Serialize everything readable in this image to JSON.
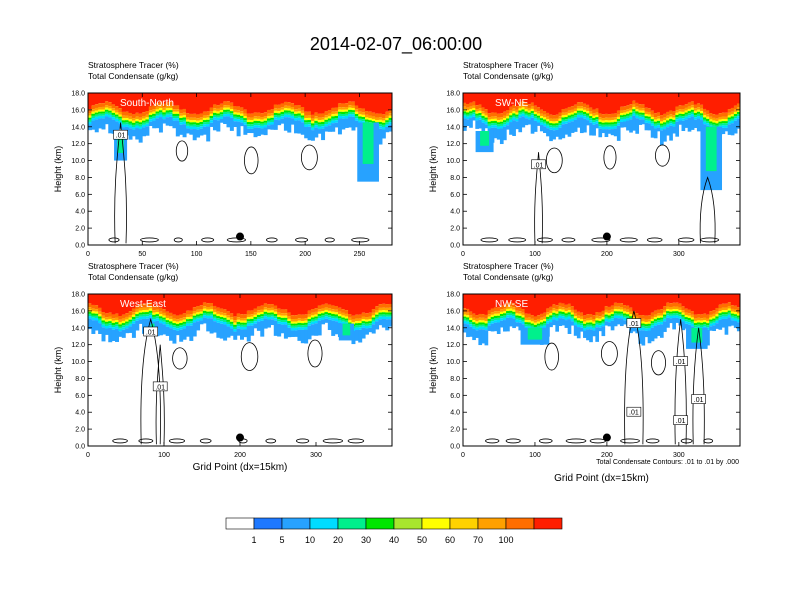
{
  "title": "2014-02-07_06:00:00",
  "colors": {
    "levels": [
      "#ffffff",
      "#1e78ff",
      "#27a2ff",
      "#00dcff",
      "#00f08c",
      "#00e600",
      "#a8e62e",
      "#ffff00",
      "#ffd200",
      "#ffa000",
      "#ff6e00",
      "#ff1e00"
    ],
    "contour": "#000000",
    "panel_label": "#ffffff"
  },
  "colorbar": {
    "labels": [
      "1",
      "5",
      "10",
      "20",
      "30",
      "40",
      "50",
      "60",
      "70",
      "100"
    ]
  },
  "footer": {
    "contour_note": "Total Condensate Contours: .01 to .01 by .000"
  },
  "chart_data": [
    {
      "type": "heatmap",
      "panel_label": "South-North",
      "left_title_1": "Stratosphere Tracer   (%)",
      "left_title_2": "Total Condensate   (g/kg)",
      "ylabel": "Height (km)",
      "xlabel": "",
      "xlim": [
        0,
        280
      ],
      "ylim": [
        0,
        18
      ],
      "xticks": [
        0,
        50,
        100,
        150,
        200,
        250
      ],
      "yticks": [
        "0.0",
        "2.0",
        "4.0",
        "6.0",
        "8.0",
        "10.0",
        "12.0",
        "14.0",
        "16.0",
        "18.0"
      ],
      "contour_labels": [
        ".01"
      ],
      "marker_x": 140
    },
    {
      "type": "heatmap",
      "panel_label": "SW-NE",
      "left_title_1": "Stratosphere Tracer   (%)",
      "left_title_2": "Total Condensate   (g/kg)",
      "ylabel": "Height (km)",
      "xlabel": "",
      "xlim": [
        0,
        385
      ],
      "ylim": [
        0,
        18
      ],
      "xticks": [
        0,
        100,
        200,
        300
      ],
      "yticks": [
        "0.0",
        "2.0",
        "4.0",
        "6.0",
        "8.0",
        "10.0",
        "12.0",
        "14.0",
        "16.0",
        "18.0"
      ],
      "contour_labels": [
        ".01"
      ],
      "marker_x": 200
    },
    {
      "type": "heatmap",
      "panel_label": "West-East",
      "left_title_1": "Stratosphere Tracer   (%)",
      "left_title_2": "Total Condensate   (g/kg)",
      "ylabel": "Height (km)",
      "xlabel": "Grid Point (dx=15km)",
      "xlim": [
        0,
        400
      ],
      "ylim": [
        0,
        18
      ],
      "xticks": [
        0,
        100,
        200,
        300
      ],
      "yticks": [
        "0.0",
        "2.0",
        "4.0",
        "6.0",
        "8.0",
        "10.0",
        "12.0",
        "14.0",
        "16.0",
        "18.0"
      ],
      "contour_labels": [
        ".01",
        ".01"
      ],
      "marker_x": 200
    },
    {
      "type": "heatmap",
      "panel_label": "NW-SE",
      "left_title_1": "Stratosphere Tracer   (%)",
      "left_title_2": "Total Condensate   (g/kg)",
      "ylabel": "Height (km)",
      "xlabel": "Grid Point (dx=15km)",
      "xlim": [
        0,
        385
      ],
      "ylim": [
        0,
        18
      ],
      "xticks": [
        0,
        100,
        200,
        300
      ],
      "yticks": [
        "0.0",
        "2.0",
        "4.0",
        "6.0",
        "8.0",
        "10.0",
        "12.0",
        "14.0",
        "16.0",
        "18.0"
      ],
      "contour_labels": [
        ".01",
        ".01",
        ".01",
        ".01",
        ".01"
      ],
      "marker_x": 200
    }
  ]
}
